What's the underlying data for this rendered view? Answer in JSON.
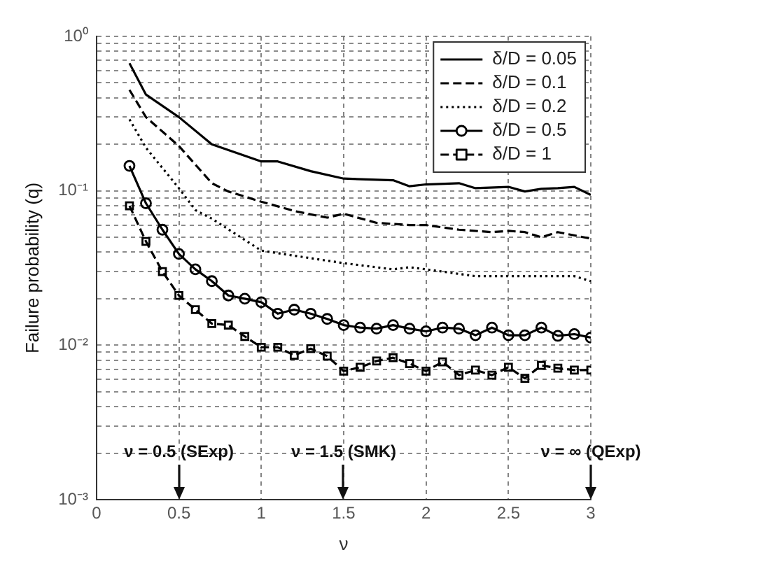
{
  "chart_data": {
    "type": "line",
    "xlabel": "ν",
    "ylabel": "Failure probability (q)",
    "xlim": [
      0,
      3
    ],
    "xticks": [
      0,
      0.5,
      1,
      1.5,
      2,
      2.5,
      3
    ],
    "ylim": [
      0.001,
      1
    ],
    "log": "y",
    "yticks": [
      {
        "value": 0.001,
        "label": "10⁻³"
      },
      {
        "value": 0.002,
        "label": null
      },
      {
        "value": 0.003,
        "label": null
      },
      {
        "value": 0.004,
        "label": null
      },
      {
        "value": 0.005,
        "label": null
      },
      {
        "value": 0.006,
        "label": null
      },
      {
        "value": 0.007,
        "label": null
      },
      {
        "value": 0.008,
        "label": null
      },
      {
        "value": 0.009,
        "label": null
      },
      {
        "value": 0.01,
        "label": "10⁻²"
      },
      {
        "value": 0.02,
        "label": null
      },
      {
        "value": 0.03,
        "label": null
      },
      {
        "value": 0.04,
        "label": null
      },
      {
        "value": 0.05,
        "label": null
      },
      {
        "value": 0.06,
        "label": null
      },
      {
        "value": 0.07,
        "label": null
      },
      {
        "value": 0.08,
        "label": null
      },
      {
        "value": 0.09,
        "label": null
      },
      {
        "value": 0.1,
        "label": "10⁻¹"
      },
      {
        "value": 0.2,
        "label": null
      },
      {
        "value": 0.3,
        "label": null
      },
      {
        "value": 0.4,
        "label": null
      },
      {
        "value": 0.5,
        "label": null
      },
      {
        "value": 0.6,
        "label": null
      },
      {
        "value": 0.7,
        "label": null
      },
      {
        "value": 0.8,
        "label": null
      },
      {
        "value": 0.9,
        "label": null
      },
      {
        "value": 1,
        "label": "10⁰"
      }
    ],
    "grid": true,
    "legend": "top right",
    "series": [
      {
        "name": "δ/D = 0.05",
        "color": "#000000",
        "line_style": "solid",
        "marker": "none",
        "x": [
          0.2,
          0.3,
          0.5,
          0.7,
          1.0,
          1.1,
          1.3,
          1.5,
          1.8,
          1.9,
          2.0,
          2.2,
          2.3,
          2.5,
          2.6,
          2.7,
          2.8,
          2.9,
          3.0
        ],
        "values": [
          0.67,
          0.42,
          0.3,
          0.2,
          0.155,
          0.155,
          0.134,
          0.12,
          0.117,
          0.107,
          0.11,
          0.112,
          0.104,
          0.106,
          0.099,
          0.103,
          0.104,
          0.106,
          0.094
        ]
      },
      {
        "name": "δ/D = 0.1",
        "color": "#000000",
        "line_style": "dashed",
        "marker": "none",
        "x": [
          0.2,
          0.3,
          0.5,
          0.7,
          0.8,
          1.0,
          1.2,
          1.4,
          1.5,
          1.7,
          1.9,
          2.0,
          2.2,
          2.4,
          2.5,
          2.6,
          2.7,
          2.8,
          3.0
        ],
        "values": [
          0.45,
          0.3,
          0.195,
          0.112,
          0.099,
          0.085,
          0.074,
          0.067,
          0.071,
          0.062,
          0.06,
          0.06,
          0.056,
          0.054,
          0.055,
          0.054,
          0.05,
          0.054,
          0.049
        ]
      },
      {
        "name": "δ/D = 0.2",
        "color": "#000000",
        "line_style": "dotted",
        "marker": "none",
        "x": [
          0.2,
          0.3,
          0.5,
          0.6,
          0.7,
          1.0,
          1.2,
          1.5,
          1.8,
          1.9,
          2.0,
          2.3,
          2.5,
          2.7,
          2.9,
          3.0
        ],
        "values": [
          0.29,
          0.19,
          0.104,
          0.075,
          0.066,
          0.041,
          0.038,
          0.034,
          0.031,
          0.032,
          0.031,
          0.028,
          0.028,
          0.028,
          0.028,
          0.026
        ]
      },
      {
        "name": "δ/D = 0.5",
        "color": "#000000",
        "line_style": "solid",
        "marker": "circle",
        "x": [
          0.2,
          0.3,
          0.4,
          0.5,
          0.6,
          0.7,
          0.8,
          0.9,
          1.0,
          1.1,
          1.2,
          1.3,
          1.4,
          1.5,
          1.6,
          1.7,
          1.8,
          1.9,
          2.0,
          2.1,
          2.2,
          2.3,
          2.4,
          2.5,
          2.6,
          2.7,
          2.8,
          2.9,
          3.0
        ],
        "values": [
          0.145,
          0.083,
          0.056,
          0.039,
          0.031,
          0.026,
          0.021,
          0.02,
          0.019,
          0.016,
          0.017,
          0.016,
          0.0148,
          0.0135,
          0.013,
          0.0128,
          0.0135,
          0.0128,
          0.0123,
          0.013,
          0.0128,
          0.0116,
          0.013,
          0.0116,
          0.0116,
          0.013,
          0.0115,
          0.0118,
          0.0112
        ]
      },
      {
        "name": "δ/D = 1",
        "color": "#000000",
        "line_style": "dashed",
        "marker": "square",
        "x": [
          0.2,
          0.3,
          0.4,
          0.5,
          0.6,
          0.7,
          0.8,
          0.9,
          1.0,
          1.1,
          1.2,
          1.3,
          1.4,
          1.5,
          1.6,
          1.7,
          1.8,
          1.9,
          2.0,
          2.1,
          2.2,
          2.3,
          2.4,
          2.5,
          2.6,
          2.7,
          2.8,
          2.9,
          3.0
        ],
        "values": [
          0.08,
          0.047,
          0.03,
          0.021,
          0.017,
          0.0138,
          0.0135,
          0.0114,
          0.0097,
          0.0097,
          0.0086,
          0.0095,
          0.0085,
          0.0068,
          0.0072,
          0.0079,
          0.0083,
          0.0076,
          0.0068,
          0.0078,
          0.0064,
          0.0069,
          0.0064,
          0.0072,
          0.0061,
          0.0074,
          0.0071,
          0.0069,
          0.0069
        ]
      }
    ],
    "annotations": [
      {
        "text": "ν = 0.5 (SExp)",
        "x": 0.5
      },
      {
        "text": "ν = 1.5 (SMK)",
        "x": 1.5
      },
      {
        "text": "ν = ∞ (QExp)",
        "x": 3
      }
    ]
  }
}
